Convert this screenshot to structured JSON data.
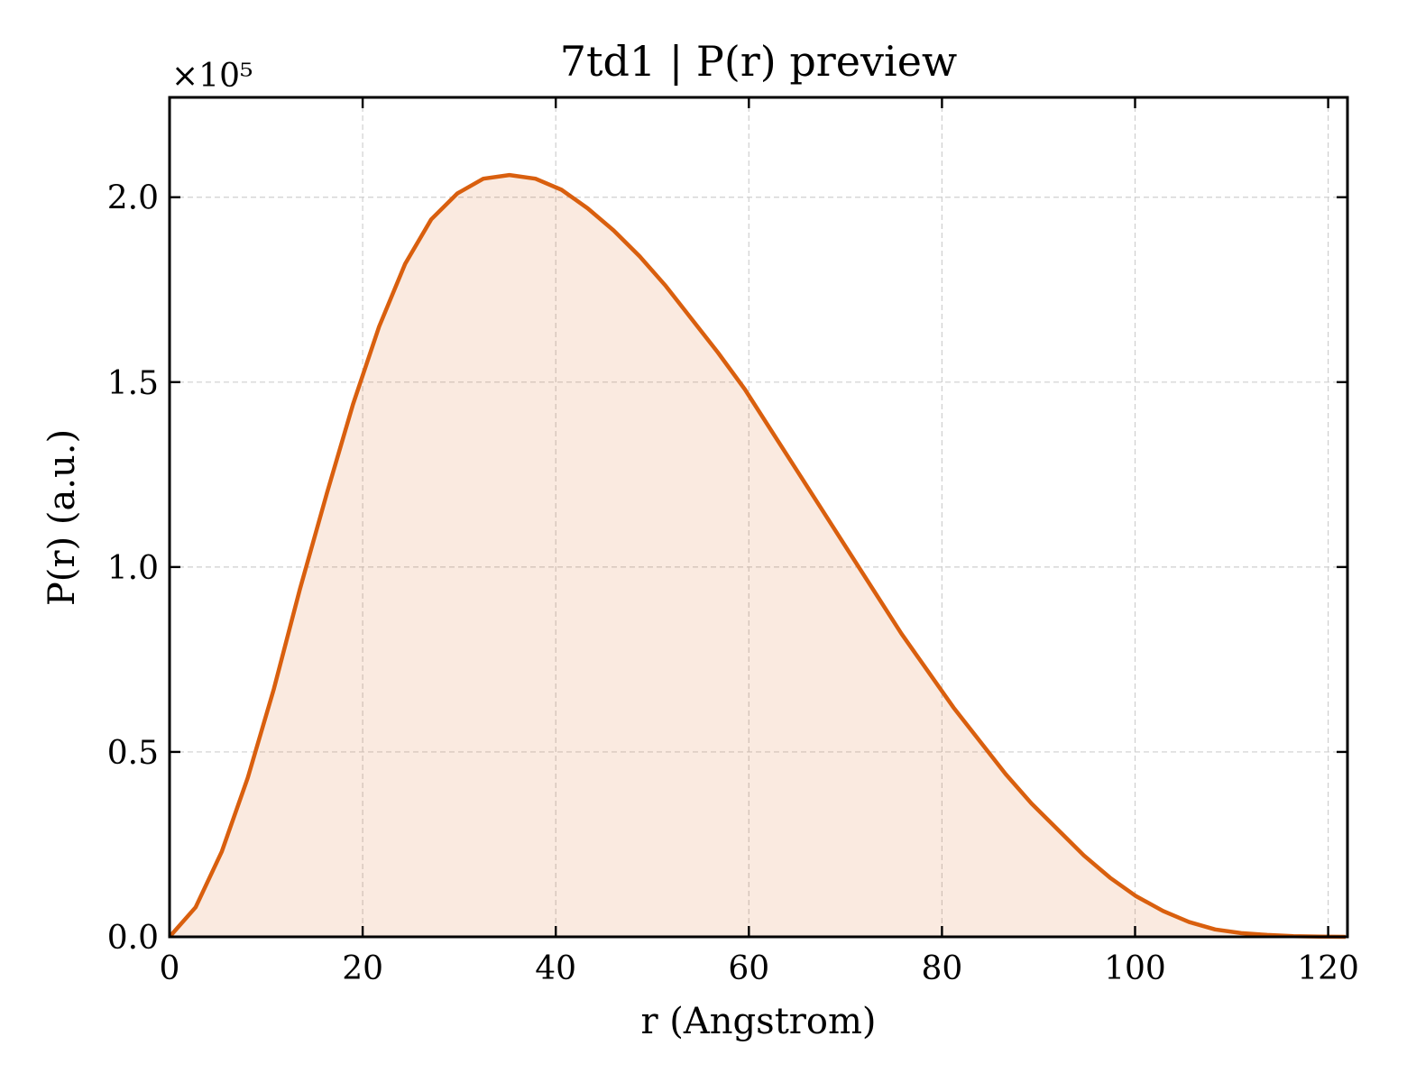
{
  "chart_data": {
    "type": "area",
    "title": "7td1 | P(r) preview",
    "xlabel": "r (Angstrom)",
    "ylabel": "P(r) (a.u.)",
    "y_multiplier": "×10⁵",
    "xlim": [
      0,
      122
    ],
    "ylim": [
      0,
      2.27
    ],
    "xticks": [
      0,
      20,
      40,
      60,
      80,
      100,
      120
    ],
    "yticks": [
      0.0,
      0.5,
      1.0,
      1.5,
      2.0
    ],
    "xtick_labels": [
      "0",
      "20",
      "40",
      "60",
      "80",
      "100",
      "120"
    ],
    "ytick_labels": [
      "0.0",
      "0.5",
      "1.0",
      "1.5",
      "2.0"
    ],
    "grid": true,
    "series": [
      {
        "color": "#d95f0e",
        "fill_color": "#d95f0e",
        "x": [
          0,
          2.7,
          5.4,
          8.1,
          10.8,
          13.5,
          16.3,
          19.0,
          21.7,
          24.4,
          27.1,
          29.8,
          32.5,
          35.2,
          37.9,
          40.6,
          43.3,
          46.0,
          48.7,
          51.4,
          54.1,
          56.8,
          59.6,
          62.3,
          65.0,
          67.7,
          70.4,
          73.1,
          75.8,
          78.5,
          81.2,
          83.9,
          86.6,
          89.3,
          92.0,
          94.7,
          97.4,
          100.1,
          102.9,
          105.6,
          108.3,
          111.0,
          113.7,
          116.4,
          119.1,
          121.8
        ],
        "values": [
          0.0,
          0.08,
          0.23,
          0.43,
          0.67,
          0.94,
          1.2,
          1.44,
          1.65,
          1.82,
          1.94,
          2.01,
          2.05,
          2.06,
          2.05,
          2.02,
          1.97,
          1.91,
          1.84,
          1.76,
          1.67,
          1.58,
          1.48,
          1.37,
          1.26,
          1.15,
          1.04,
          0.93,
          0.82,
          0.72,
          0.62,
          0.53,
          0.44,
          0.36,
          0.29,
          0.22,
          0.16,
          0.11,
          0.07,
          0.04,
          0.02,
          0.01,
          0.005,
          0.002,
          0.0005,
          0.0
        ]
      }
    ]
  }
}
